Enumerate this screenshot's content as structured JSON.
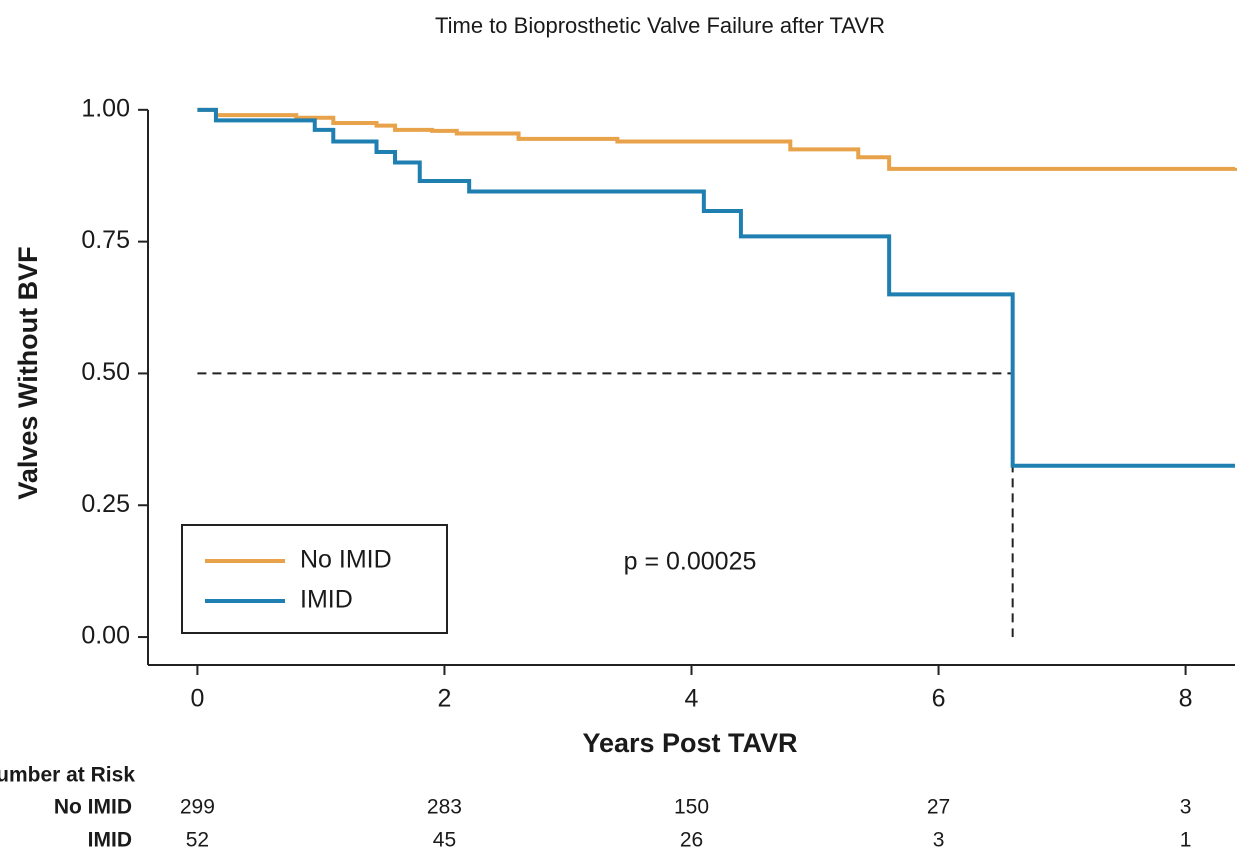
{
  "chart_data": {
    "type": "line",
    "step": "post",
    "title": "Time to Bioprosthetic Valve Failure after TAVR",
    "xlabel": "Years Post TAVR",
    "ylabel": "Valves Without BVF",
    "xlim": [
      -0.4,
      8.4
    ],
    "ylim": [
      -0.053,
      1.03
    ],
    "xticks": [
      0,
      2,
      4,
      6,
      8
    ],
    "yticks": [
      {
        "value": 0,
        "label": "0.00"
      },
      {
        "value": 0.25,
        "label": "0.25"
      },
      {
        "value": 0.5,
        "label": "0.50"
      },
      {
        "value": 0.75,
        "label": "0.75"
      },
      {
        "value": 1,
        "label": "1.00"
      }
    ],
    "legend": "lower left",
    "annotation": "p = 0.00025",
    "median_line": {
      "y": 0.5,
      "x": 6.6
    },
    "series": [
      {
        "name": "No IMID",
        "color": "#e8a24a",
        "x": [
          0,
          0.15,
          0.8,
          1.1,
          1.45,
          1.6,
          1.9,
          2.1,
          2.6,
          3.4,
          4.8,
          5.35,
          5.6,
          8.4
        ],
        "values": [
          1.0,
          0.99,
          0.985,
          0.975,
          0.97,
          0.962,
          0.96,
          0.955,
          0.945,
          0.94,
          0.925,
          0.91,
          0.888,
          0.89
        ]
      },
      {
        "name": "IMID",
        "color": "#1f7fb0",
        "x": [
          0,
          0.15,
          0.95,
          1.1,
          1.45,
          1.6,
          1.8,
          2.2,
          4.1,
          4.4,
          5.6,
          6.6,
          8.4
        ],
        "values": [
          1.0,
          0.98,
          0.962,
          0.94,
          0.92,
          0.9,
          0.865,
          0.845,
          0.808,
          0.76,
          0.65,
          0.325,
          0.325
        ]
      }
    ],
    "risk_table": {
      "title": "Number at Risk",
      "x": [
        0,
        2,
        4,
        6,
        8
      ],
      "rows": [
        {
          "name": "No IMID",
          "values": [
            299,
            283,
            150,
            27,
            3
          ]
        },
        {
          "name": "IMID",
          "values": [
            52,
            45,
            26,
            3,
            1
          ]
        }
      ]
    }
  }
}
